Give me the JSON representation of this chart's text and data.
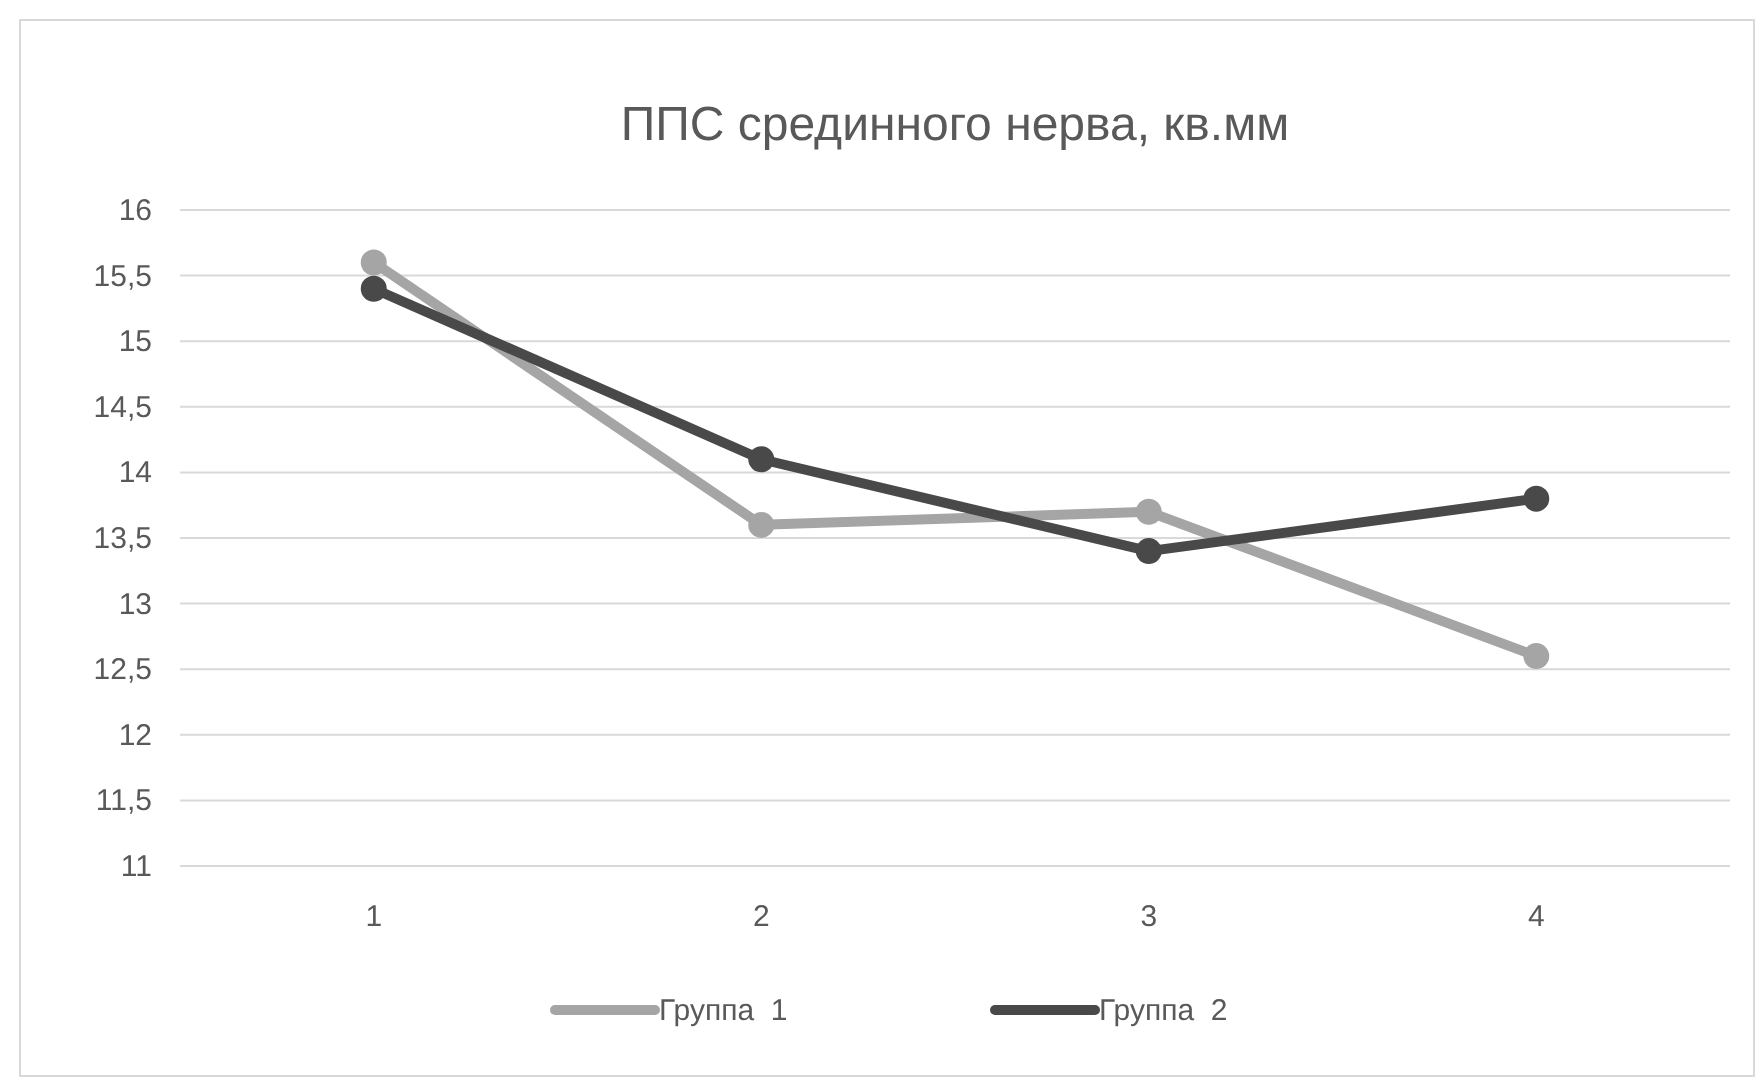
{
  "chart_data": {
    "type": "line",
    "title": "ППС срединного нерва, кв.мм",
    "categories": [
      "1",
      "2",
      "3",
      "4"
    ],
    "series": [
      {
        "name": "Группа  1",
        "color": "#a5a5a5",
        "values": [
          15.6,
          13.6,
          13.7,
          12.6
        ]
      },
      {
        "name": "Группа  2",
        "color": "#494949",
        "values": [
          15.4,
          14.1,
          13.4,
          13.8
        ]
      }
    ],
    "ylim": [
      11,
      16
    ],
    "yticks": [
      11,
      {
        "value": 11.5,
        "label": "11,5"
      },
      12,
      {
        "value": 12.5,
        "label": "12,5"
      },
      13,
      {
        "value": 13.5,
        "label": "13,5"
      },
      14,
      {
        "value": 14.5,
        "label": "14,5"
      },
      15,
      {
        "value": 15.5,
        "label": "15,5"
      },
      16
    ],
    "grid": "y",
    "legend": "bottom",
    "marker": "circle",
    "line_style": "solid"
  }
}
